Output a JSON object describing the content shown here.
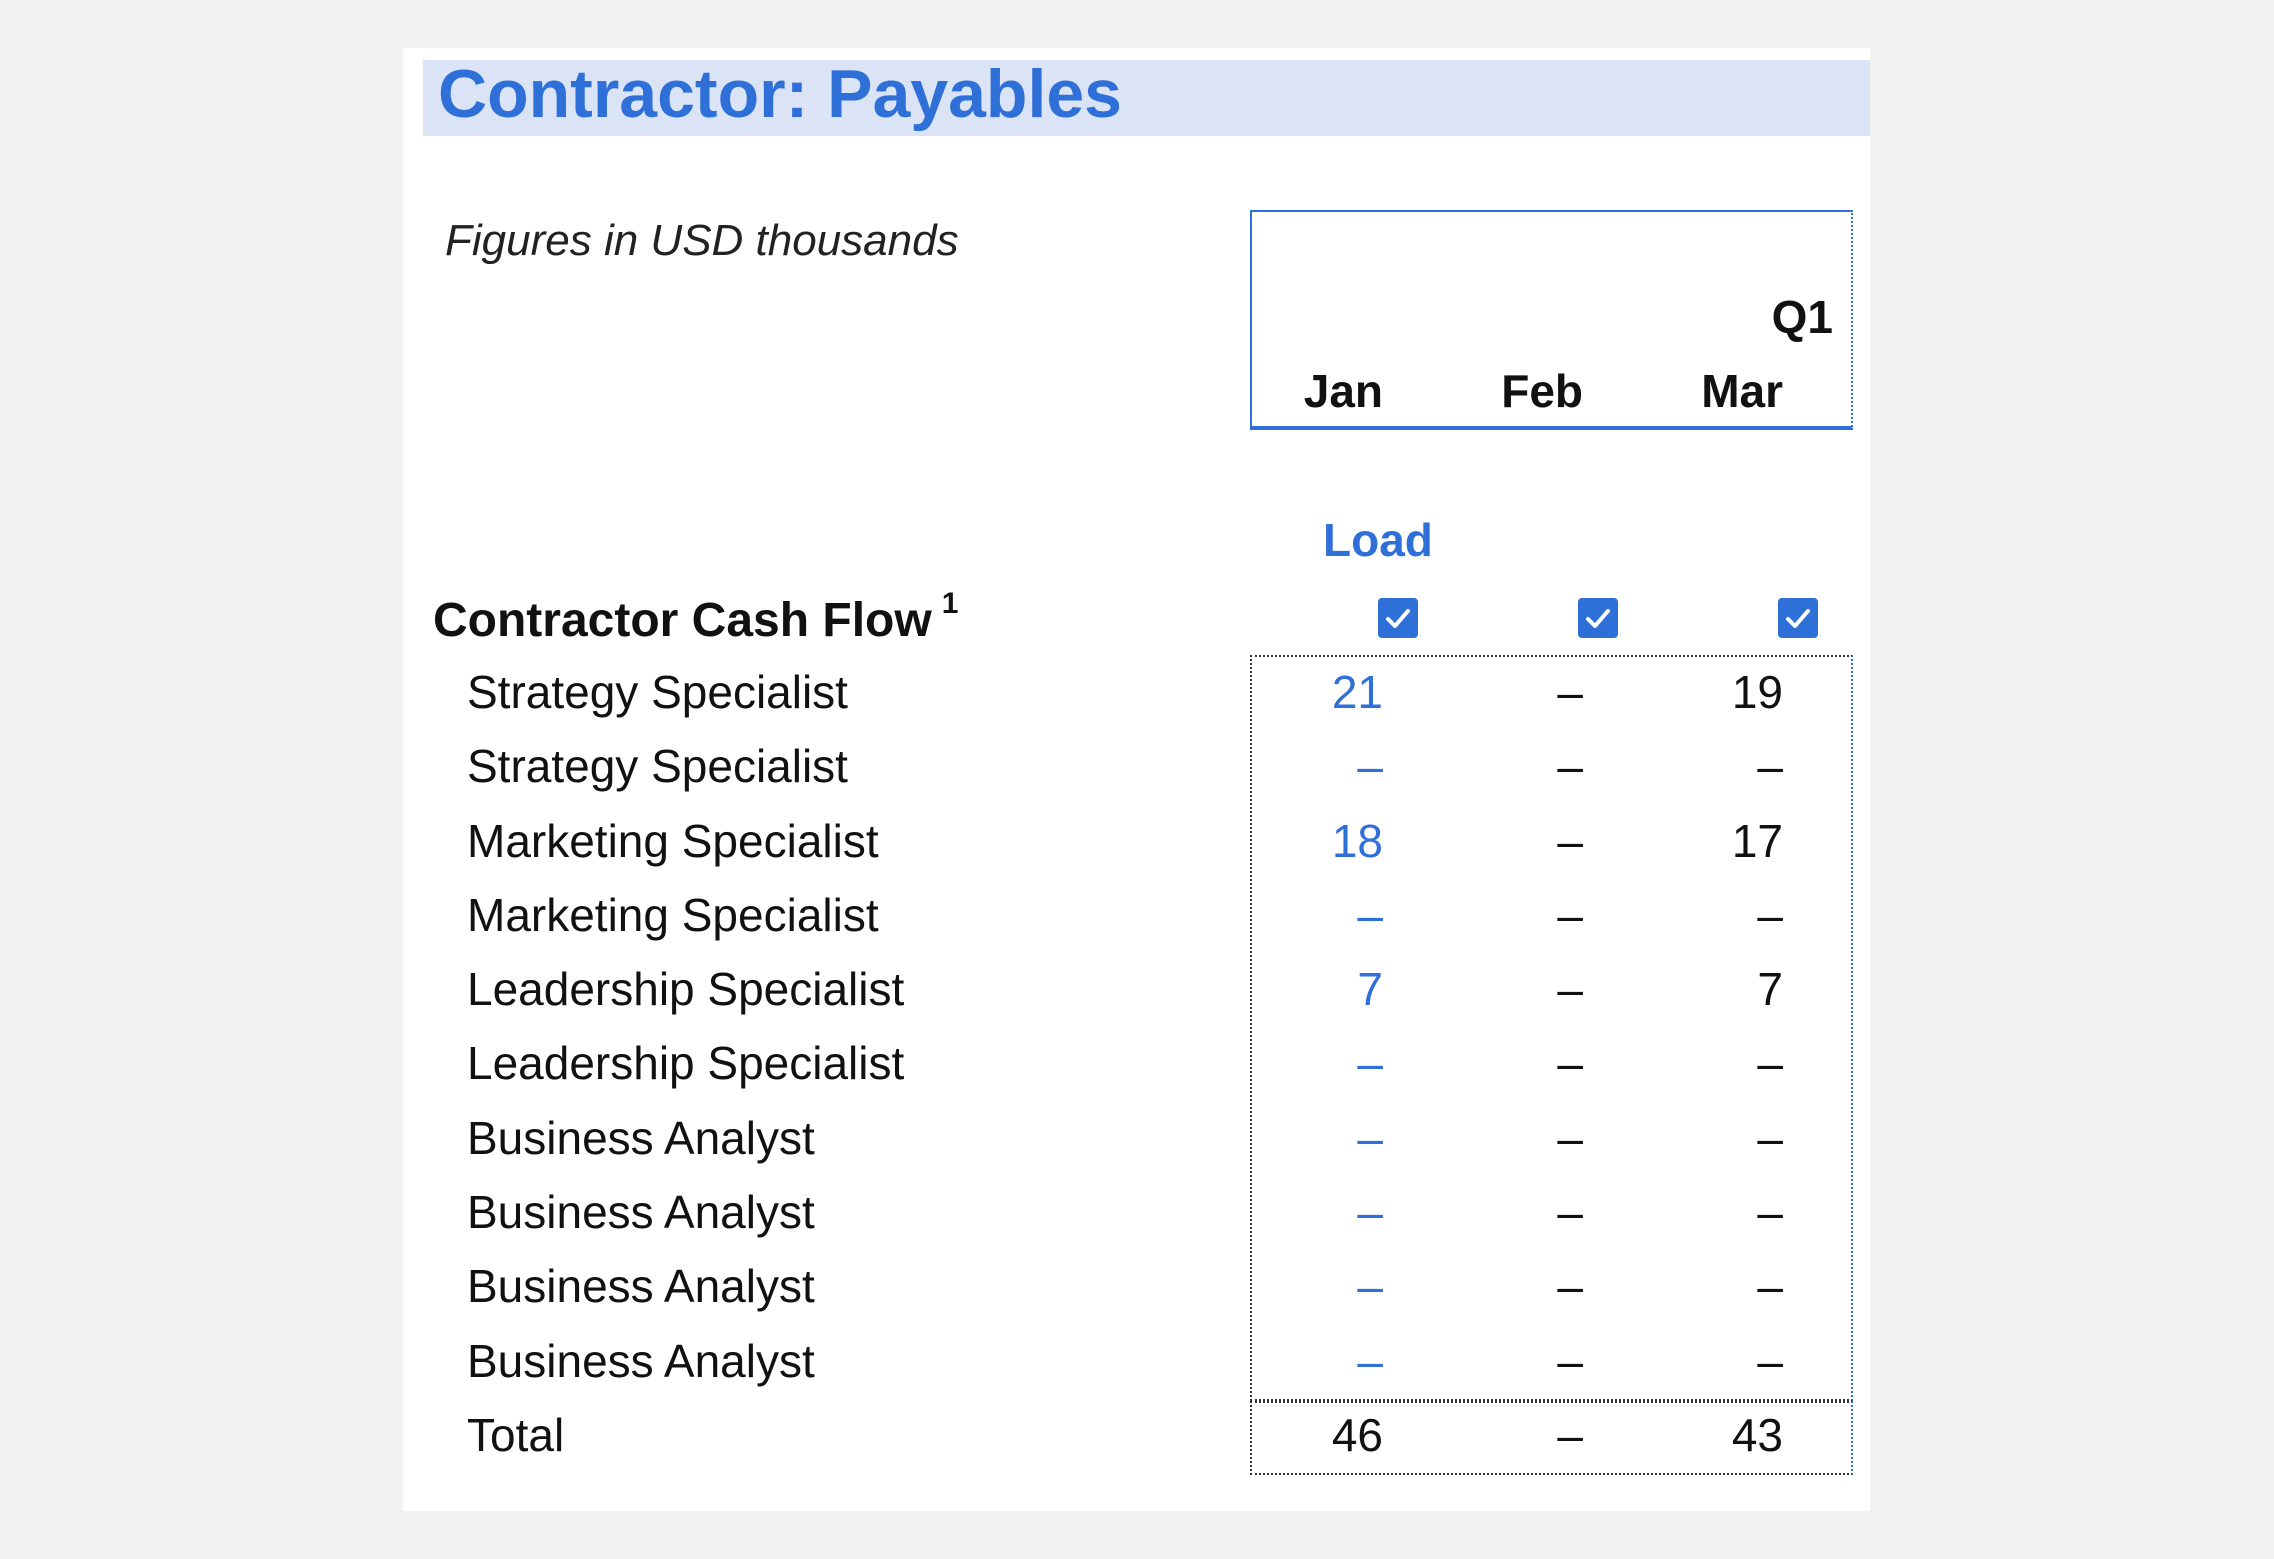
{
  "title": "Contractor: Payables",
  "units_note": "Figures in USD thousands",
  "header": {
    "quarter_label": "Q1",
    "months": [
      "Jan",
      "Feb",
      "Mar"
    ]
  },
  "load_label": "Load",
  "section": {
    "title": "Contractor Cash Flow",
    "footnote": "1",
    "load_checks": [
      true,
      true,
      true
    ]
  },
  "rows": [
    {
      "label": "Strategy Specialist",
      "values": [
        "21",
        "–",
        "19"
      ]
    },
    {
      "label": "Strategy Specialist",
      "values": [
        "–",
        "–",
        "–"
      ]
    },
    {
      "label": "Marketing Specialist",
      "values": [
        "18",
        "–",
        "17"
      ]
    },
    {
      "label": "Marketing Specialist",
      "values": [
        "–",
        "–",
        "–"
      ]
    },
    {
      "label": "Leadership Specialist",
      "values": [
        "7",
        "–",
        "7"
      ]
    },
    {
      "label": "Leadership Specialist",
      "values": [
        "–",
        "–",
        "–"
      ]
    },
    {
      "label": "Business Analyst",
      "values": [
        "–",
        "–",
        "–"
      ]
    },
    {
      "label": "Business Analyst",
      "values": [
        "–",
        "–",
        "–"
      ]
    },
    {
      "label": "Business Analyst",
      "values": [
        "–",
        "–",
        "–"
      ]
    },
    {
      "label": "Business Analyst",
      "values": [
        "–",
        "–",
        "–"
      ]
    }
  ],
  "total": {
    "label": "Total",
    "values": [
      "46",
      "–",
      "43"
    ]
  },
  "colors": {
    "accent": "#2f6fd8",
    "title_band": "#dae4f6",
    "background": "#f2f2f2"
  }
}
